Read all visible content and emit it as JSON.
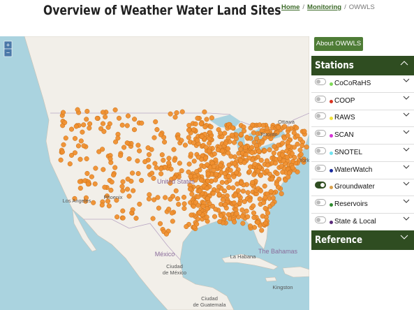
{
  "header": {
    "title": "Overview of Weather Water Land Sites",
    "breadcrumb": {
      "items": [
        "Home",
        "Monitoring",
        "OWWLS"
      ],
      "separator": "/"
    }
  },
  "map": {
    "zoom": [
      "+",
      "−"
    ],
    "labels": [
      {
        "lines": [
          "Ottawa"
        ],
        "x": 0,
        "kind": "city"
      },
      {
        "lines": [
          "Toronto"
        ],
        "kind": "city"
      },
      {
        "lines": [
          "York"
        ],
        "kind": "city"
      },
      {
        "lines": [
          "United States"
        ],
        "kind": "country"
      },
      {
        "lines": [
          "Los Angeles"
        ],
        "kind": "city"
      },
      {
        "lines": [
          "Phoenix"
        ],
        "kind": "city"
      },
      {
        "lines": [
          "México"
        ],
        "kind": "country"
      },
      {
        "lines": [
          "Ciudad",
          "de México"
        ],
        "kind": "city"
      },
      {
        "lines": [
          "La Habana"
        ],
        "kind": "city"
      },
      {
        "lines": [
          "The Bahamas"
        ],
        "kind": "country"
      },
      {
        "lines": [
          "Kingston"
        ],
        "kind": "city"
      },
      {
        "lines": [
          "Ciudad",
          "de Guatemala"
        ],
        "kind": "city"
      }
    ]
  },
  "sidebar": {
    "about_button": "About OWWLS",
    "stations": {
      "title": "Stations",
      "items": [
        {
          "name": "CoCoRaHS",
          "color": "#7ed957",
          "on": false
        },
        {
          "name": "COOP",
          "color": "#d9321f",
          "on": false
        },
        {
          "name": "RAWS",
          "color": "#f2e33a",
          "on": false
        },
        {
          "name": "SCAN",
          "color": "#d633d6",
          "on": false
        },
        {
          "name": "SNOTEL",
          "color": "#6fe3f0",
          "on": false
        },
        {
          "name": "WaterWatch",
          "color": "#1a2b9e",
          "on": false
        },
        {
          "name": "Groundwater",
          "color": "#d9a04a",
          "on": true
        },
        {
          "name": "Reservoirs",
          "color": "#2f8a2f",
          "on": false
        },
        {
          "name": "State & Local",
          "color": "#5a2a7a",
          "on": false
        }
      ]
    },
    "reference": {
      "title": "Reference"
    }
  }
}
